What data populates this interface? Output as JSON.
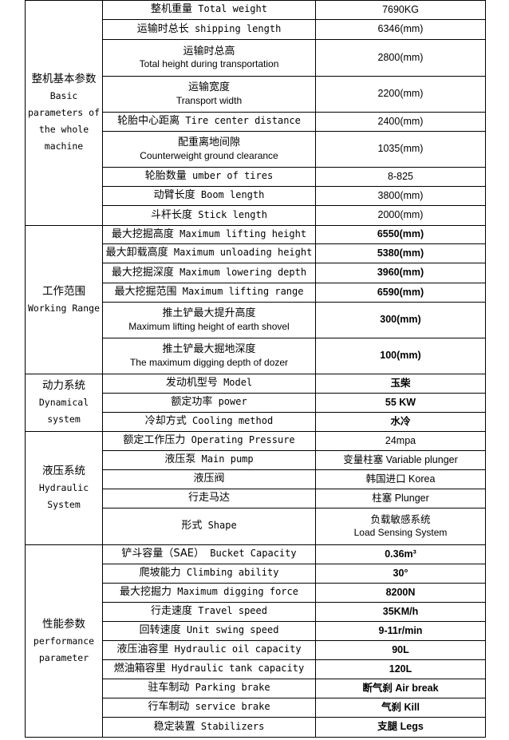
{
  "groups": [
    {
      "cn": "整机基本参数",
      "en": "Basic parameters of the whole machine",
      "bold_values": false,
      "rows": [
        {
          "cn": "整机重量",
          "en": "Total weight",
          "value": "7690KG"
        },
        {
          "cn": "运输时总长",
          "en": "shipping length",
          "value": "6346(mm)"
        },
        {
          "cn": "运输时总高",
          "en2": "Total height during transportation",
          "value": "2800(mm)"
        },
        {
          "cn": "运输宽度",
          "en2": "Transport width",
          "value": "2200(mm)"
        },
        {
          "cn": "轮胎中心距离",
          "en": "Tire center distance",
          "value": "2400(mm)"
        },
        {
          "cn": "配重离地间隙",
          "en2": "Counterweight ground clearance",
          "value": "1035(mm)"
        },
        {
          "cn": "轮胎数量",
          "en": "umber of tires",
          "value": "8-825"
        },
        {
          "cn": "动臂长度",
          "en": "Boom length",
          "value": "3800(mm)"
        },
        {
          "cn": "斗杆长度",
          "en": "Stick length",
          "value": "2000(mm)"
        }
      ]
    },
    {
      "cn": "工作范围",
      "en": "Working Range",
      "bold_values": true,
      "rows": [
        {
          "cn": "最大挖掘高度",
          "en": "Maximum lifting height",
          "value": "6550(mm)"
        },
        {
          "cn": "最大卸载高度",
          "en": "Maximum unloading height",
          "value": "5380(mm)"
        },
        {
          "cn": "最大挖掘深度",
          "en": "Maximum lowering depth",
          "value": "3960(mm)"
        },
        {
          "cn": "最大挖掘范围",
          "en": "Maximum lifting range",
          "value": "6590(mm)"
        },
        {
          "cn": "推土铲最大提升高度",
          "en2": "Maximum lifting height of earth shovel",
          "value": "300(mm)"
        },
        {
          "cn": "推土铲最大掘地深度",
          "en2": "The maximum digging depth of dozer",
          "value": "100(mm)"
        }
      ]
    },
    {
      "cn": "动力系统",
      "en": "Dynamical system",
      "bold_values": true,
      "rows": [
        {
          "cn": "发动机型号",
          "en": "Model",
          "value": "玉柴"
        },
        {
          "cn": "额定功率",
          "en": "power",
          "value": "55 KW"
        },
        {
          "cn": "冷却方式",
          "en": "Cooling method",
          "value": "水冷"
        }
      ]
    },
    {
      "cn": "液压系统",
      "en": "Hydraulic System",
      "bold_values": false,
      "rows": [
        {
          "cn": "额定工作压力",
          "en": "Operating Pressure",
          "value": "24mpa"
        },
        {
          "cn": "液压泵",
          "en": "Main pump",
          "value": "变量柱塞 Variable plunger"
        },
        {
          "cn": "液压阀",
          "value": "韩国进口 Korea"
        },
        {
          "cn": "行走马达",
          "value": "柱塞 Plunger"
        },
        {
          "cn": "形式",
          "en": "Shape",
          "value": "负载敏感系统",
          "value2": "Load Sensing System"
        }
      ]
    },
    {
      "cn": "性能参数",
      "en": "performance parameter",
      "bold_values": true,
      "rows": [
        {
          "cn": "铲斗容量（SAE）",
          "en": "Bucket Capacity",
          "value": "0.36m³"
        },
        {
          "cn": "爬坡能力",
          "en": "Climbing ability",
          "value": "30°"
        },
        {
          "cn": "最大挖掘力",
          "en": "Maximum digging force",
          "value": "8200N"
        },
        {
          "cn": "行走速度",
          "en": "Travel speed",
          "value": "35KM/h"
        },
        {
          "cn": "回转速度",
          "en": "Unit swing speed",
          "value": "9-11r/min"
        },
        {
          "cn": "液压油容里",
          "en": "Hydraulic oil capacity",
          "value": "90L"
        },
        {
          "cn": "燃油箱容里",
          "en": "Hydraulic tank capacity",
          "value": "120L"
        },
        {
          "cn": "驻车制动",
          "en": "Parking brake",
          "value": "断气刹 Air break"
        },
        {
          "cn": "行车制动",
          "en": "service brake",
          "value": "气刹 Kill"
        },
        {
          "cn": "稳定装置",
          "en": "Stabilizers",
          "value": "支腿 Legs"
        }
      ]
    }
  ]
}
